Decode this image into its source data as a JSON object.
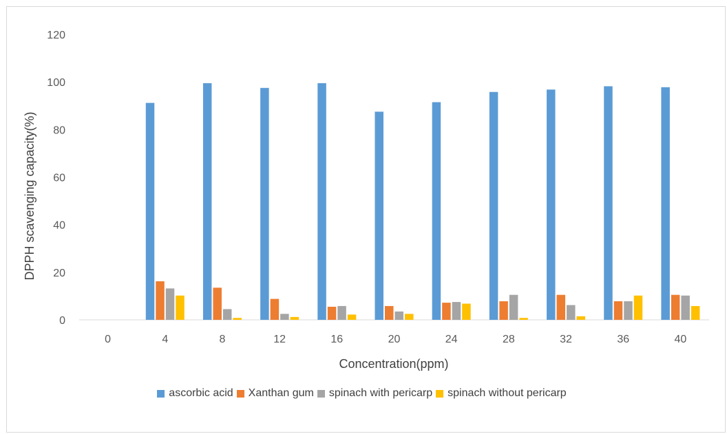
{
  "chart_data": {
    "type": "bar",
    "title": "",
    "xlabel": "Concentration(ppm)",
    "ylabel": "DPPH scavenging capacity(%)",
    "ylim": [
      0,
      120
    ],
    "yticks": [
      "0",
      "20",
      "40",
      "60",
      "80",
      "100",
      "120"
    ],
    "categories": [
      "0",
      "4",
      "8",
      "12",
      "16",
      "20",
      "24",
      "28",
      "32",
      "36",
      "40"
    ],
    "grid": false,
    "legend_position": "bottom",
    "series": [
      {
        "name": "ascorbic acid",
        "color": "#5b9bd5",
        "values": [
          0,
          91.2,
          99.5,
          97.5,
          99.5,
          87.5,
          91.5,
          95.8,
          96.8,
          98.2,
          97.8
        ]
      },
      {
        "name": "Xanthan gum",
        "color": "#ed7d31",
        "values": [
          0,
          16.2,
          13.5,
          8.8,
          5.5,
          5.8,
          7.2,
          7.8,
          10.5,
          7.8,
          10.5
        ]
      },
      {
        "name": "spinach with pericarp",
        "color": "#a5a5a5",
        "values": [
          0,
          13.2,
          4.5,
          2.5,
          5.8,
          3.5,
          7.5,
          10.5,
          6.2,
          7.8,
          10.2
        ]
      },
      {
        "name": "spinach without pericarp",
        "color": "#ffc000",
        "values": [
          0,
          10.2,
          0.8,
          1.2,
          2.2,
          2.5,
          6.8,
          0.8,
          1.5,
          10.2,
          5.8
        ]
      }
    ]
  }
}
